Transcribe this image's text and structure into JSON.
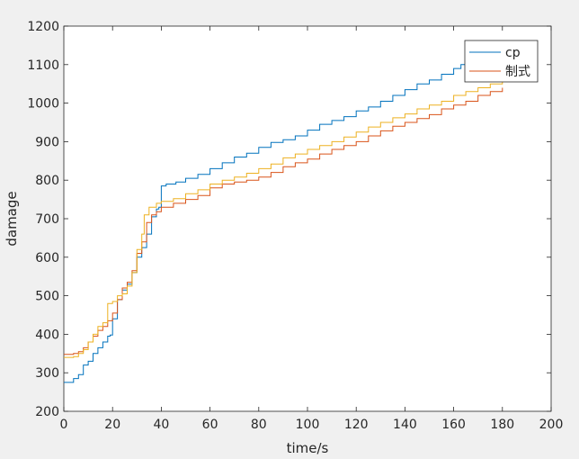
{
  "chart_data": {
    "type": "line",
    "title": "",
    "xlabel": "time/s",
    "ylabel": "damage",
    "xlim": [
      0,
      200
    ],
    "ylim": [
      200,
      1200
    ],
    "xticks": [
      0,
      20,
      40,
      60,
      80,
      100,
      120,
      140,
      160,
      180,
      200
    ],
    "yticks": [
      200,
      300,
      400,
      500,
      600,
      700,
      800,
      900,
      1000,
      1100,
      1200
    ],
    "grid": false,
    "legend_position": "top-right",
    "series": [
      {
        "name": "cp",
        "color": "#0072bd",
        "points": [
          [
            0,
            275
          ],
          [
            2,
            275
          ],
          [
            4,
            285
          ],
          [
            6,
            295
          ],
          [
            8,
            320
          ],
          [
            10,
            330
          ],
          [
            12,
            350
          ],
          [
            14,
            365
          ],
          [
            16,
            380
          ],
          [
            18,
            395
          ],
          [
            19,
            398
          ],
          [
            20,
            440
          ],
          [
            22,
            490
          ],
          [
            24,
            515
          ],
          [
            26,
            530
          ],
          [
            28,
            560
          ],
          [
            30,
            600
          ],
          [
            32,
            625
          ],
          [
            34,
            660
          ],
          [
            36,
            705
          ],
          [
            38,
            725
          ],
          [
            39,
            730
          ],
          [
            40,
            785
          ],
          [
            42,
            790
          ],
          [
            46,
            795
          ],
          [
            50,
            805
          ],
          [
            55,
            815
          ],
          [
            60,
            830
          ],
          [
            65,
            845
          ],
          [
            70,
            860
          ],
          [
            75,
            870
          ],
          [
            80,
            885
          ],
          [
            85,
            898
          ],
          [
            90,
            905
          ],
          [
            95,
            915
          ],
          [
            100,
            930
          ],
          [
            105,
            945
          ],
          [
            110,
            955
          ],
          [
            115,
            965
          ],
          [
            120,
            980
          ],
          [
            125,
            990
          ],
          [
            130,
            1005
          ],
          [
            135,
            1020
          ],
          [
            140,
            1035
          ],
          [
            145,
            1050
          ],
          [
            150,
            1060
          ],
          [
            155,
            1075
          ],
          [
            160,
            1090
          ],
          [
            163,
            1100
          ],
          [
            165,
            1110
          ]
        ]
      },
      {
        "name": "制式",
        "color": "#d95319",
        "points": [
          [
            0,
            348
          ],
          [
            4,
            350
          ],
          [
            6,
            355
          ],
          [
            8,
            365
          ],
          [
            10,
            380
          ],
          [
            12,
            395
          ],
          [
            14,
            410
          ],
          [
            16,
            420
          ],
          [
            18,
            435
          ],
          [
            20,
            455
          ],
          [
            22,
            490
          ],
          [
            24,
            520
          ],
          [
            26,
            535
          ],
          [
            28,
            565
          ],
          [
            30,
            610
          ],
          [
            32,
            640
          ],
          [
            34,
            690
          ],
          [
            36,
            710
          ],
          [
            38,
            718
          ],
          [
            40,
            730
          ],
          [
            45,
            740
          ],
          [
            50,
            750
          ],
          [
            55,
            760
          ],
          [
            60,
            780
          ],
          [
            65,
            790
          ],
          [
            70,
            795
          ],
          [
            75,
            800
          ],
          [
            80,
            808
          ],
          [
            85,
            820
          ],
          [
            90,
            835
          ],
          [
            95,
            845
          ],
          [
            100,
            855
          ],
          [
            105,
            868
          ],
          [
            110,
            880
          ],
          [
            115,
            890
          ],
          [
            120,
            900
          ],
          [
            125,
            915
          ],
          [
            130,
            928
          ],
          [
            135,
            940
          ],
          [
            140,
            950
          ],
          [
            145,
            960
          ],
          [
            150,
            970
          ],
          [
            155,
            985
          ],
          [
            160,
            995
          ],
          [
            165,
            1005
          ],
          [
            170,
            1020
          ],
          [
            175,
            1030
          ],
          [
            180,
            1040
          ]
        ]
      },
      {
        "name": "",
        "color": "#edb120",
        "points": [
          [
            0,
            340
          ],
          [
            4,
            342
          ],
          [
            6,
            350
          ],
          [
            8,
            360
          ],
          [
            10,
            380
          ],
          [
            12,
            400
          ],
          [
            14,
            420
          ],
          [
            16,
            430
          ],
          [
            18,
            480
          ],
          [
            20,
            485
          ],
          [
            22,
            500
          ],
          [
            24,
            505
          ],
          [
            26,
            525
          ],
          [
            28,
            560
          ],
          [
            30,
            620
          ],
          [
            32,
            660
          ],
          [
            33,
            710
          ],
          [
            35,
            730
          ],
          [
            38,
            740
          ],
          [
            40,
            745
          ],
          [
            45,
            752
          ],
          [
            50,
            765
          ],
          [
            55,
            775
          ],
          [
            60,
            790
          ],
          [
            65,
            800
          ],
          [
            70,
            808
          ],
          [
            75,
            818
          ],
          [
            80,
            830
          ],
          [
            85,
            842
          ],
          [
            90,
            858
          ],
          [
            95,
            868
          ],
          [
            100,
            880
          ],
          [
            105,
            890
          ],
          [
            110,
            900
          ],
          [
            115,
            912
          ],
          [
            120,
            925
          ],
          [
            125,
            938
          ],
          [
            130,
            950
          ],
          [
            135,
            962
          ],
          [
            140,
            972
          ],
          [
            145,
            985
          ],
          [
            150,
            995
          ],
          [
            155,
            1005
          ],
          [
            160,
            1020
          ],
          [
            165,
            1030
          ],
          [
            170,
            1040
          ],
          [
            175,
            1050
          ],
          [
            180,
            1058
          ]
        ]
      }
    ]
  }
}
